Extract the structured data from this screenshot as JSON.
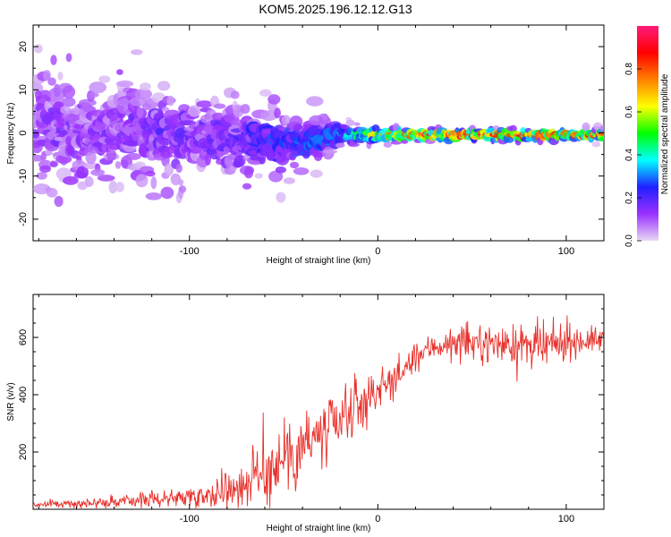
{
  "title": "KOM5.2025.196.12.12.G13",
  "chart_data": [
    {
      "type": "heatmap",
      "xlabel": "Height of straight line (km)",
      "ylabel": "Frequency (Hz)",
      "xlim": [
        -183,
        120
      ],
      "ylim": [
        -25,
        25
      ],
      "x_ticks": [
        -100,
        0,
        100
      ],
      "x_tick_labels": [
        "-100",
        "0",
        "100"
      ],
      "y_ticks": [
        -20,
        -10,
        0,
        10,
        20
      ],
      "y_tick_labels": [
        "-20",
        "-10",
        "0",
        "10",
        "20"
      ],
      "colorbar": {
        "label": "Normalized spectral amplitude",
        "range": [
          0,
          1
        ],
        "ticks": [
          0.0,
          0.2,
          0.4,
          0.6,
          0.8
        ],
        "tick_labels": [
          "0.0",
          "0.2",
          "0.4",
          "0.6",
          "0.8"
        ],
        "colors": [
          "#e8d8f4",
          "#9b30ff",
          "#2020ff",
          "#00ffff",
          "#00ff00",
          "#ffff00",
          "#ff8000",
          "#ff0000",
          "#ff1a7a"
        ]
      },
      "profile": {
        "x": [
          -180,
          -160,
          -140,
          -120,
          -100,
          -80,
          -60,
          -40,
          -20,
          0,
          20,
          40,
          60,
          80,
          100,
          120
        ],
        "center_freq": [
          1.5,
          1.0,
          0.5,
          0.0,
          -0.5,
          -1.0,
          -1.5,
          -2.5,
          -0.5,
          -0.5,
          -0.5,
          -0.5,
          -0.5,
          -0.5,
          -0.5,
          -0.5
        ],
        "spread_hz": [
          14,
          13,
          12,
          11,
          9,
          9,
          8,
          6,
          3,
          2,
          1.5,
          1.5,
          1.5,
          1.5,
          1.5,
          1.5
        ],
        "peak_amplitude": [
          0.05,
          0.05,
          0.05,
          0.08,
          0.08,
          0.1,
          0.15,
          0.2,
          0.3,
          0.6,
          0.85,
          0.85,
          0.8,
          0.8,
          0.75,
          0.75
        ]
      }
    },
    {
      "type": "line",
      "xlabel": "Height of straight line (km)",
      "ylabel": "SNR (v/v)",
      "xlim": [
        -183,
        120
      ],
      "ylim": [
        0,
        750
      ],
      "x_ticks": [
        -100,
        0,
        100
      ],
      "x_tick_labels": [
        "-100",
        "0",
        "100"
      ],
      "y_ticks": [
        200,
        400,
        600
      ],
      "y_tick_labels": [
        "200",
        "400",
        "600"
      ],
      "line_color": "#e8302a",
      "series": [
        {
          "x": [
            -183,
            -170,
            -160,
            -150,
            -140,
            -130,
            -120,
            -110,
            -100,
            -90,
            -80,
            -70,
            -60,
            -55,
            -50,
            -45,
            -40,
            -35,
            -30,
            -25,
            -20,
            -15,
            -10,
            -5,
            0,
            5,
            10,
            15,
            20,
            25,
            30,
            40,
            50,
            60,
            70,
            80,
            85,
            90,
            95,
            100,
            110,
            120
          ],
          "mean": [
            15,
            18,
            20,
            22,
            25,
            30,
            35,
            40,
            45,
            55,
            70,
            95,
            130,
            160,
            190,
            210,
            230,
            240,
            250,
            270,
            300,
            330,
            360,
            390,
            420,
            440,
            460,
            490,
            530,
            550,
            570,
            575,
            580,
            580,
            575,
            570,
            560,
            565,
            575,
            585,
            590,
            590
          ],
          "noise": [
            8,
            10,
            12,
            14,
            18,
            20,
            22,
            26,
            30,
            40,
            55,
            70,
            90,
            110,
            120,
            125,
            125,
            120,
            115,
            110,
            100,
            90,
            80,
            70,
            60,
            55,
            50,
            45,
            40,
            40,
            40,
            45,
            50,
            55,
            55,
            60,
            70,
            70,
            60,
            50,
            40,
            35
          ]
        }
      ]
    }
  ]
}
